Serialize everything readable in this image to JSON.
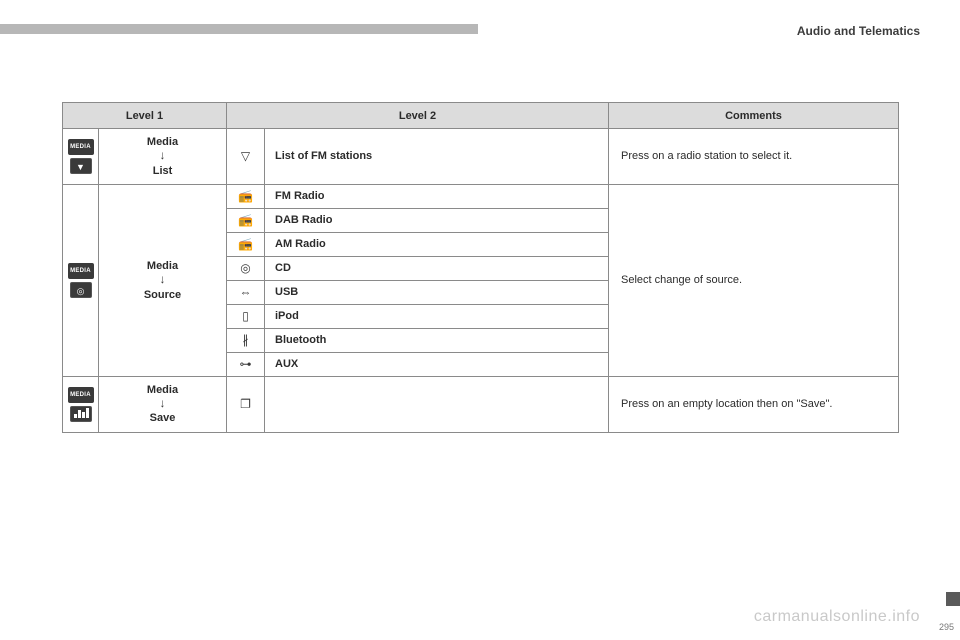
{
  "header": {
    "section": "Audio and Telematics"
  },
  "columns": {
    "level1": "Level 1",
    "level2": "Level 2",
    "comments": "Comments"
  },
  "rows": {
    "list": {
      "btn": "MEDIA",
      "l1_top": "Media",
      "l1_bot": "List",
      "l2_label": "List of FM stations",
      "comment": "Press on a radio station to select it."
    },
    "source": {
      "btn": "MEDIA",
      "l1_top": "Media",
      "l1_bot": "Source",
      "items": [
        {
          "icon": "📻",
          "label": "FM Radio"
        },
        {
          "icon": "📻",
          "label": "DAB Radio"
        },
        {
          "icon": "📻",
          "label": "AM Radio"
        },
        {
          "icon": "◎",
          "label": "CD"
        },
        {
          "icon": "⇔",
          "label": "USB"
        },
        {
          "icon": "▯",
          "label": "iPod"
        },
        {
          "icon": "∦",
          "label": "Bluetooth"
        },
        {
          "icon": "⊶",
          "label": "AUX"
        }
      ],
      "comment": "Select change of source."
    },
    "save": {
      "btn": "MEDIA",
      "l1_top": "Media",
      "l1_bot": "Save",
      "comment": "Press on an empty location then on \"Save\"."
    }
  },
  "watermark": "carmanualsonline.info",
  "pagenum": "295"
}
